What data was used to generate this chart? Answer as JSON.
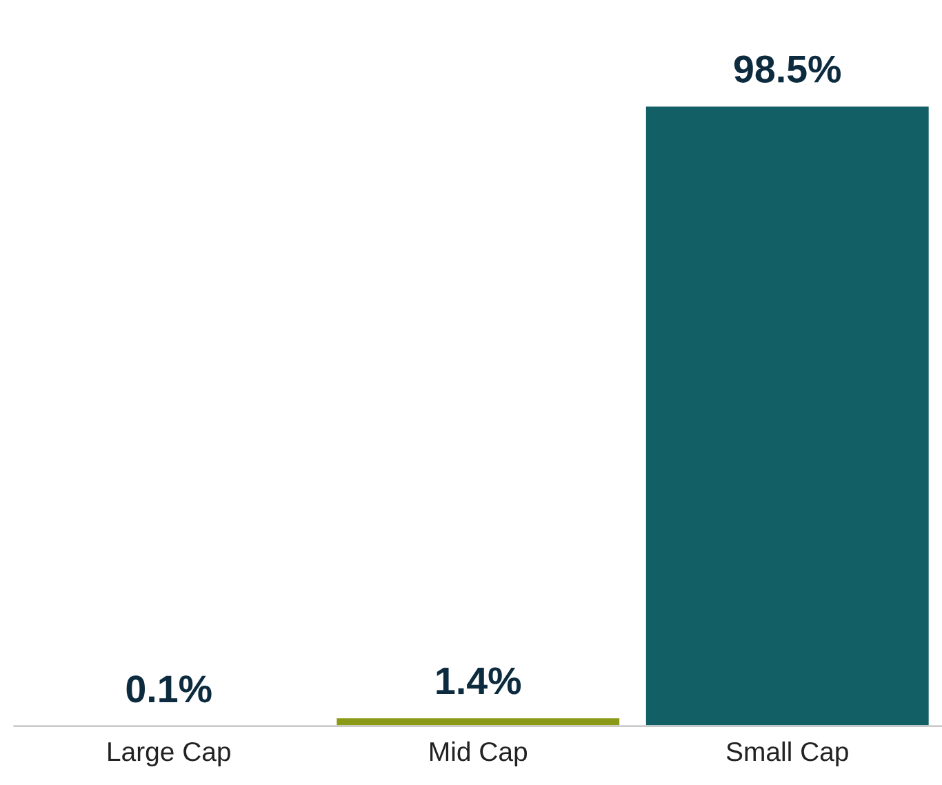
{
  "chart_data": {
    "type": "bar",
    "categories": [
      "Large Cap",
      "Mid Cap",
      "Small Cap"
    ],
    "values": [
      0.1,
      1.4,
      98.5
    ],
    "colors": [
      "#1c3f5e",
      "#8a9a16",
      "#135f66"
    ],
    "value_labels": [
      "0.1%",
      "1.4%",
      "98.5%"
    ],
    "grid": false,
    "legend": false
  }
}
